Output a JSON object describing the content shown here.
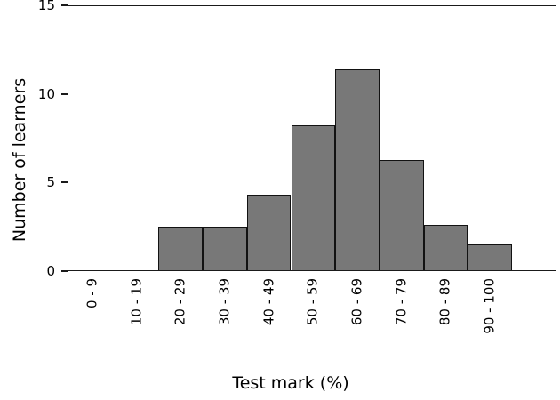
{
  "figure": {
    "background": "#ffffff",
    "frame_color": "#1a1a1a"
  },
  "chart_data": {
    "type": "bar",
    "subtype": "histogram",
    "title": "",
    "xlabel": "Test mark (%)",
    "ylabel": "Number of learners",
    "categories": [
      "0 - 9",
      "10 - 19",
      "20 - 29",
      "30 - 39",
      "40 - 49",
      "50 - 59",
      "60 - 69",
      "70 - 79",
      "80 - 89",
      "90 - 100"
    ],
    "values": [
      0,
      0,
      2.5,
      2.5,
      4.3,
      8.25,
      11.4,
      6.25,
      2.6,
      1.5
    ],
    "ylim": [
      0,
      15
    ],
    "yticks": [
      0,
      5,
      10,
      15
    ],
    "x_tick_rotation_deg": 90,
    "grid": false,
    "legend": null,
    "bar_fill": "#787878",
    "bar_edge": "#121212",
    "bars_touching": true
  }
}
